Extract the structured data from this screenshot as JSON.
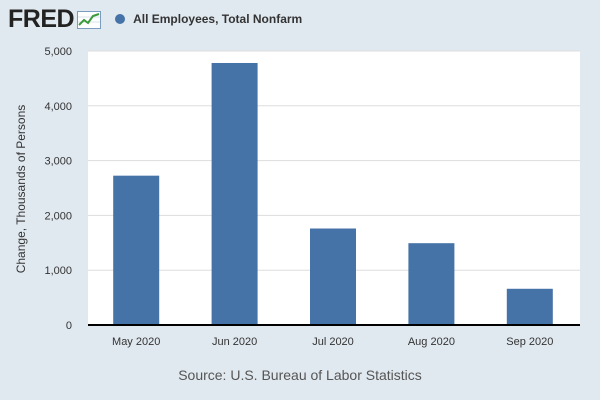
{
  "header": {
    "logo": "FRED",
    "series_label": "All Employees, Total Nonfarm"
  },
  "colors": {
    "background": "#e1e9f0",
    "plot_area": "#ffffff",
    "bar": "#4572a7",
    "axis": "#000000",
    "grid": "#dddddd"
  },
  "chart_data": {
    "type": "bar",
    "title": "",
    "xlabel": "",
    "ylabel": "Change, Thousands of Persons",
    "categories": [
      "May 2020",
      "Jun 2020",
      "Jul 2020",
      "Aug 2020",
      "Sep 2020"
    ],
    "series": [
      {
        "name": "All Employees, Total Nonfarm",
        "values": [
          2725,
          4781,
          1761,
          1493,
          661
        ]
      }
    ],
    "ylim": [
      0,
      5000
    ],
    "yticks": [
      0,
      1000,
      2000,
      3000,
      4000,
      5000
    ],
    "ytick_labels": [
      "0",
      "1,000",
      "2,000",
      "3,000",
      "4,000",
      "5,000"
    ],
    "grid": true,
    "legend": "top-left"
  },
  "footer": {
    "source": "Source: U.S. Bureau of Labor Statistics"
  }
}
